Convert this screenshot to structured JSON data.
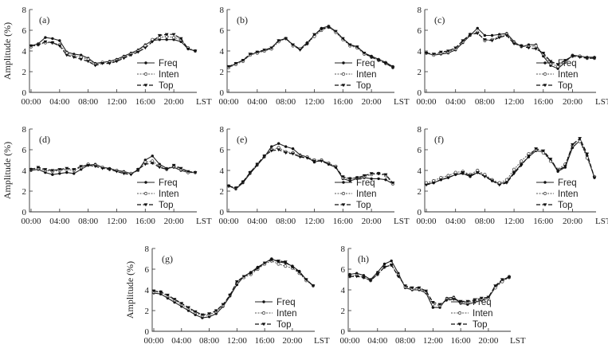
{
  "chart_data": [
    {
      "id": "a",
      "type": "line",
      "panel_label": "(a)",
      "ylabel": "Amplitude (%)",
      "ylim": [
        0,
        8
      ],
      "yticks": [
        "0",
        "2",
        "4",
        "6",
        "8"
      ],
      "xticks": [
        "00:00",
        "04:00",
        "08:00",
        "12:00",
        "16:00",
        "20:00",
        "LST"
      ],
      "legend": [
        "Freq",
        "Inten",
        "Top"
      ],
      "series": [
        {
          "name": "Freq",
          "values": [
            4.5,
            4.7,
            5.3,
            5.2,
            5.0,
            3.9,
            3.7,
            3.6,
            3.3,
            2.8,
            2.9,
            3.0,
            3.2,
            3.5,
            3.8,
            4.1,
            4.6,
            5.0,
            5.1,
            5.1,
            5.1,
            4.9,
            4.2,
            4.0
          ]
        },
        {
          "name": "Inten",
          "values": [
            4.4,
            4.6,
            4.8,
            4.8,
            4.6,
            3.8,
            3.5,
            3.4,
            3.2,
            2.7,
            2.9,
            2.9,
            3.1,
            3.4,
            3.7,
            4.0,
            4.5,
            5.1,
            5.3,
            5.4,
            5.3,
            5.1,
            4.3,
            4.0
          ]
        },
        {
          "name": "Top",
          "values": [
            4.5,
            4.6,
            4.9,
            4.8,
            4.5,
            3.6,
            3.4,
            3.2,
            3.0,
            2.6,
            2.8,
            2.8,
            3.0,
            3.3,
            3.6,
            3.9,
            4.3,
            4.9,
            5.5,
            5.6,
            5.6,
            5.2,
            4.2,
            4.0
          ]
        }
      ]
    },
    {
      "id": "b",
      "type": "line",
      "panel_label": "(b)",
      "ylabel": "",
      "ylim": [
        0,
        8
      ],
      "yticks": [
        "0",
        "2",
        "4",
        "6",
        "8"
      ],
      "xticks": [
        "00:00",
        "04:00",
        "08:00",
        "12:00",
        "16:00",
        "20:00",
        "LST"
      ],
      "legend": [
        "Freq",
        "Inten",
        "Top"
      ],
      "series": [
        {
          "name": "Freq",
          "values": [
            2.4,
            2.8,
            3.1,
            3.6,
            3.9,
            4.0,
            4.3,
            5.0,
            5.2,
            4.6,
            4.2,
            4.8,
            5.5,
            6.2,
            6.4,
            5.9,
            5.2,
            4.6,
            4.4,
            3.8,
            3.5,
            3.2,
            2.9,
            2.5
          ]
        },
        {
          "name": "Inten",
          "values": [
            2.4,
            2.7,
            3.0,
            3.6,
            3.8,
            4.0,
            4.2,
            4.9,
            5.2,
            4.5,
            4.2,
            4.7,
            5.4,
            6.0,
            6.3,
            5.8,
            5.1,
            4.5,
            4.3,
            3.7,
            3.4,
            3.1,
            2.8,
            2.4
          ]
        },
        {
          "name": "Top",
          "values": [
            2.5,
            2.8,
            3.1,
            3.7,
            3.9,
            4.1,
            4.3,
            5.0,
            5.2,
            4.6,
            4.1,
            4.7,
            5.6,
            6.1,
            6.3,
            5.9,
            5.2,
            4.6,
            4.4,
            3.8,
            3.4,
            3.1,
            2.8,
            2.4
          ]
        }
      ]
    },
    {
      "id": "c",
      "type": "line",
      "panel_label": "(c)",
      "ylabel": "",
      "ylim": [
        0,
        8
      ],
      "yticks": [
        "0",
        "2",
        "4",
        "6",
        "8"
      ],
      "xticks": [
        "00:00",
        "04:00",
        "08:00",
        "12:00",
        "16:00",
        "20:00",
        "LST"
      ],
      "legend": [
        "Freq",
        "Inten",
        "Top"
      ],
      "series": [
        {
          "name": "Freq",
          "values": [
            3.8,
            3.6,
            3.7,
            3.8,
            4.1,
            4.8,
            5.5,
            6.2,
            5.5,
            5.5,
            5.6,
            5.7,
            4.9,
            4.4,
            4.6,
            4.6,
            3.5,
            2.6,
            2.3,
            2.9,
            3.6,
            3.5,
            3.4,
            3.4
          ]
        },
        {
          "name": "Inten",
          "values": [
            3.8,
            3.6,
            3.8,
            3.9,
            4.2,
            4.9,
            5.6,
            5.8,
            5.0,
            5.1,
            5.4,
            5.6,
            4.8,
            4.5,
            4.4,
            4.5,
            3.7,
            2.8,
            2.5,
            3.0,
            3.5,
            3.5,
            3.3,
            3.3
          ]
        },
        {
          "name": "Top",
          "values": [
            3.8,
            3.7,
            3.9,
            4.0,
            4.3,
            5.0,
            5.6,
            5.7,
            5.1,
            5.0,
            5.3,
            5.5,
            4.7,
            4.5,
            4.3,
            4.2,
            3.8,
            3.0,
            2.7,
            3.1,
            3.5,
            3.4,
            3.3,
            3.3
          ]
        }
      ]
    },
    {
      "id": "d",
      "type": "line",
      "panel_label": "(d)",
      "ylabel": "Amplitude (%)",
      "ylim": [
        0,
        8
      ],
      "yticks": [
        "0",
        "2",
        "4",
        "6",
        "8"
      ],
      "xticks": [
        "00:00",
        "04:00",
        "08:00",
        "12:00",
        "16:00",
        "20:00",
        "LST"
      ],
      "legend": [
        "Freq",
        "Inten",
        "Top"
      ],
      "series": [
        {
          "name": "Freq",
          "values": [
            4.0,
            4.1,
            3.8,
            3.6,
            3.7,
            3.8,
            3.7,
            4.1,
            4.5,
            4.6,
            4.3,
            4.2,
            4.0,
            3.9,
            3.7,
            4.0,
            5.0,
            5.4,
            4.6,
            4.2,
            4.3,
            4.0,
            3.8,
            3.8
          ]
        },
        {
          "name": "Inten",
          "values": [
            4.1,
            4.2,
            4.0,
            3.9,
            4.0,
            4.1,
            4.0,
            4.3,
            4.6,
            4.5,
            4.3,
            4.1,
            4.0,
            3.8,
            3.7,
            4.1,
            4.8,
            4.9,
            4.4,
            4.1,
            4.4,
            4.1,
            3.8,
            3.8
          ]
        },
        {
          "name": "Top",
          "values": [
            4.1,
            4.3,
            4.1,
            4.0,
            4.1,
            4.2,
            4.1,
            4.4,
            4.5,
            4.4,
            4.2,
            4.1,
            3.9,
            3.7,
            3.6,
            4.1,
            4.6,
            4.7,
            4.3,
            4.1,
            4.5,
            4.2,
            3.9,
            3.8
          ]
        }
      ]
    },
    {
      "id": "e",
      "type": "line",
      "panel_label": "(e)",
      "ylabel": "",
      "ylim": [
        0,
        8
      ],
      "yticks": [
        "0",
        "2",
        "4",
        "6",
        "8"
      ],
      "xticks": [
        "00:00",
        "04:00",
        "08:00",
        "12:00",
        "16:00",
        "20:00",
        "LST"
      ],
      "legend": [
        "Freq",
        "Inten",
        "Top"
      ],
      "series": [
        {
          "name": "Freq",
          "values": [
            2.5,
            2.2,
            2.8,
            3.7,
            4.5,
            5.3,
            6.3,
            6.6,
            6.3,
            6.1,
            5.5,
            5.3,
            4.8,
            5.0,
            4.6,
            4.3,
            3.2,
            3.0,
            3.2,
            3.3,
            3.2,
            3.2,
            3.1,
            2.7
          ]
        },
        {
          "name": "Inten",
          "values": [
            2.5,
            2.3,
            2.9,
            3.8,
            4.6,
            5.4,
            6.0,
            6.2,
            5.8,
            5.7,
            5.4,
            5.3,
            5.0,
            5.0,
            4.7,
            4.4,
            3.3,
            3.2,
            3.3,
            3.4,
            3.6,
            3.7,
            3.5,
            2.7
          ]
        },
        {
          "name": "Top",
          "values": [
            2.5,
            2.3,
            2.9,
            3.8,
            4.6,
            5.4,
            5.9,
            6.0,
            5.7,
            5.6,
            5.3,
            5.2,
            4.9,
            4.9,
            4.6,
            4.3,
            3.4,
            3.2,
            3.3,
            3.5,
            3.7,
            3.7,
            3.6,
            2.8
          ]
        }
      ]
    },
    {
      "id": "f",
      "type": "line",
      "panel_label": "(f)",
      "ylabel": "",
      "ylim": [
        0,
        8
      ],
      "yticks": [
        "0",
        "2",
        "4",
        "6",
        "8"
      ],
      "xticks": [
        "00:00",
        "04:00",
        "08:00",
        "12:00",
        "16:00",
        "20:00",
        "LST"
      ],
      "legend": [
        "Freq",
        "Inten",
        "Top"
      ],
      "series": [
        {
          "name": "Freq",
          "values": [
            2.7,
            2.8,
            3.1,
            3.3,
            3.6,
            3.7,
            3.4,
            3.8,
            3.5,
            3.0,
            2.7,
            2.9,
            3.8,
            4.6,
            5.3,
            5.9,
            5.8,
            5.0,
            3.9,
            4.3,
            6.2,
            6.9,
            5.4,
            3.3
          ]
        },
        {
          "name": "Inten",
          "values": [
            2.8,
            3.0,
            3.3,
            3.5,
            3.8,
            3.9,
            3.6,
            4.0,
            3.6,
            3.1,
            2.8,
            3.1,
            4.1,
            4.9,
            5.6,
            6.0,
            5.7,
            4.9,
            4.1,
            4.6,
            6.4,
            6.8,
            5.2,
            3.4
          ]
        },
        {
          "name": "Top",
          "values": [
            2.6,
            2.8,
            3.1,
            3.3,
            3.6,
            3.8,
            3.5,
            3.8,
            3.4,
            3.0,
            2.6,
            2.8,
            3.7,
            4.5,
            5.4,
            6.1,
            5.9,
            5.1,
            4.0,
            4.4,
            6.5,
            7.1,
            5.6,
            3.3
          ]
        }
      ]
    },
    {
      "id": "g",
      "type": "line",
      "panel_label": "(g)",
      "ylabel": "Amplitude (%)",
      "ylim": [
        0,
        8
      ],
      "yticks": [
        "0",
        "2",
        "4",
        "6",
        "8"
      ],
      "xticks": [
        "00:00",
        "04:00",
        "08:00",
        "12:00",
        "16:00",
        "20:00",
        "LST"
      ],
      "legend": [
        "Freq",
        "Inten",
        "Top"
      ],
      "series": [
        {
          "name": "Freq",
          "values": [
            3.7,
            3.6,
            3.2,
            2.8,
            2.4,
            2.0,
            1.6,
            1.3,
            1.4,
            1.7,
            2.4,
            3.4,
            4.5,
            5.3,
            5.7,
            6.2,
            6.6,
            7.0,
            6.7,
            6.6,
            6.3,
            5.8,
            5.0,
            4.4
          ]
        },
        {
          "name": "Inten",
          "values": [
            3.8,
            3.8,
            3.4,
            3.0,
            2.6,
            2.2,
            1.8,
            1.5,
            1.6,
            1.9,
            2.5,
            3.5,
            4.7,
            5.2,
            5.5,
            6.0,
            6.5,
            6.8,
            6.5,
            6.3,
            6.1,
            5.6,
            4.9,
            4.4
          ]
        },
        {
          "name": "Top",
          "values": [
            3.9,
            3.8,
            3.5,
            3.1,
            2.7,
            2.3,
            1.9,
            1.6,
            1.7,
            2.0,
            2.6,
            3.5,
            4.8,
            5.3,
            5.6,
            6.1,
            6.6,
            6.9,
            6.8,
            6.7,
            6.2,
            5.7,
            5.0,
            4.4
          ]
        }
      ]
    },
    {
      "id": "h",
      "type": "line",
      "panel_label": "(h)",
      "ylabel": "",
      "ylim": [
        0,
        8
      ],
      "yticks": [
        "0",
        "2",
        "4",
        "6",
        "8"
      ],
      "xticks": [
        "00:00",
        "04:00",
        "08:00",
        "12:00",
        "16:00",
        "20:00",
        "LST"
      ],
      "legend": [
        "Freq",
        "Inten",
        "Top"
      ],
      "series": [
        {
          "name": "Freq",
          "values": [
            5.5,
            5.6,
            5.4,
            5.0,
            5.7,
            6.5,
            6.8,
            5.6,
            4.2,
            4.0,
            4.0,
            3.7,
            2.3,
            2.3,
            3.2,
            3.3,
            2.7,
            2.6,
            2.8,
            3.0,
            3.2,
            4.3,
            4.9,
            5.3
          ]
        },
        {
          "name": "Inten",
          "values": [
            5.3,
            5.4,
            5.2,
            4.9,
            5.5,
            6.2,
            6.4,
            5.4,
            4.3,
            4.1,
            4.1,
            3.8,
            2.6,
            2.5,
            3.1,
            3.2,
            2.8,
            2.8,
            2.9,
            3.1,
            3.2,
            4.2,
            4.8,
            5.2
          ]
        },
        {
          "name": "Top",
          "values": [
            5.3,
            5.3,
            5.2,
            4.9,
            5.5,
            6.2,
            6.4,
            5.3,
            4.4,
            4.2,
            4.2,
            3.9,
            2.8,
            2.6,
            3.0,
            3.1,
            2.9,
            2.9,
            3.0,
            3.2,
            3.3,
            4.4,
            5.0,
            5.2
          ]
        }
      ]
    }
  ]
}
